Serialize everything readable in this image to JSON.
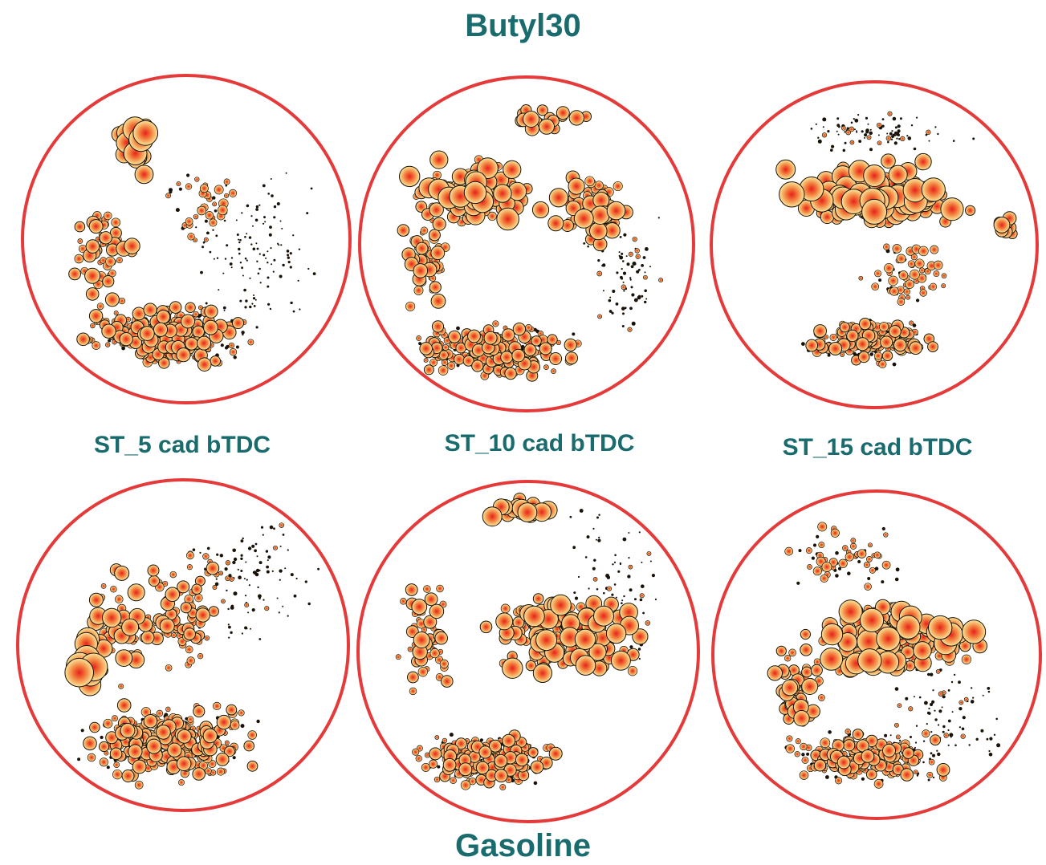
{
  "titles": {
    "top": "Butyl30",
    "bottom": "Gasoline"
  },
  "captions": [
    "ST_5 cad bTDC",
    "ST_10 cad bTDC",
    "ST_15 cad bTDC"
  ],
  "colors": {
    "label_text": "#1a6b6e",
    "ring": "#e53a3a",
    "droplet_core": "#e8201c",
    "droplet_mid": "#f27a3a",
    "droplet_edge": "#fbe79a",
    "droplet_outline": "#1a1208"
  },
  "panels": [
    {
      "id": "butyl30-st5",
      "fuel": "Butyl30",
      "spark_timing": "ST_5 cad bTDC"
    },
    {
      "id": "butyl30-st10",
      "fuel": "Butyl30",
      "spark_timing": "ST_10 cad bTDC"
    },
    {
      "id": "butyl30-st15",
      "fuel": "Butyl30",
      "spark_timing": "ST_15 cad bTDC"
    },
    {
      "id": "gasoline-st5",
      "fuel": "Gasoline",
      "spark_timing": "ST_5 cad bTDC"
    },
    {
      "id": "gasoline-st10",
      "fuel": "Gasoline",
      "spark_timing": "ST_10 cad bTDC"
    },
    {
      "id": "gasoline-st15",
      "fuel": "Gasoline",
      "spark_timing": "ST_15 cad bTDC"
    }
  ]
}
